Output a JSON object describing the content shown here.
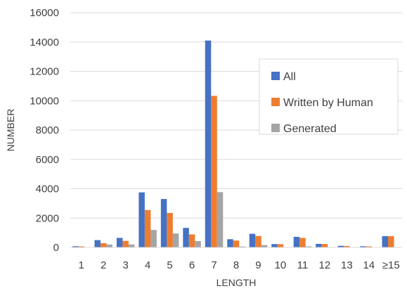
{
  "chart_data": {
    "type": "bar",
    "title": "",
    "xlabel": "LENGTH",
    "ylabel": "NUMBER",
    "categories": [
      "1",
      "2",
      "3",
      "4",
      "5",
      "6",
      "7",
      "8",
      "9",
      "10",
      "11",
      "12",
      "13",
      "14",
      "≥15"
    ],
    "ylim": [
      0,
      16000
    ],
    "yticks": [
      0,
      2000,
      4000,
      6000,
      8000,
      10000,
      12000,
      14000,
      16000
    ],
    "grid": true,
    "legend_position": "right",
    "series": [
      {
        "name": "All",
        "color": "#4472C4",
        "values": [
          80,
          500,
          650,
          3750,
          3300,
          1330,
          14100,
          560,
          930,
          230,
          720,
          240,
          110,
          80,
          770
        ]
      },
      {
        "name": "Written by Human",
        "color": "#ED7D31",
        "values": [
          70,
          290,
          450,
          2550,
          2350,
          890,
          10330,
          470,
          780,
          220,
          650,
          230,
          100,
          70,
          770
        ]
      },
      {
        "name": "Generated",
        "color": "#A5A5A5",
        "values": [
          20,
          200,
          200,
          1190,
          950,
          430,
          3770,
          60,
          160,
          20,
          70,
          20,
          10,
          20,
          20
        ]
      }
    ]
  }
}
